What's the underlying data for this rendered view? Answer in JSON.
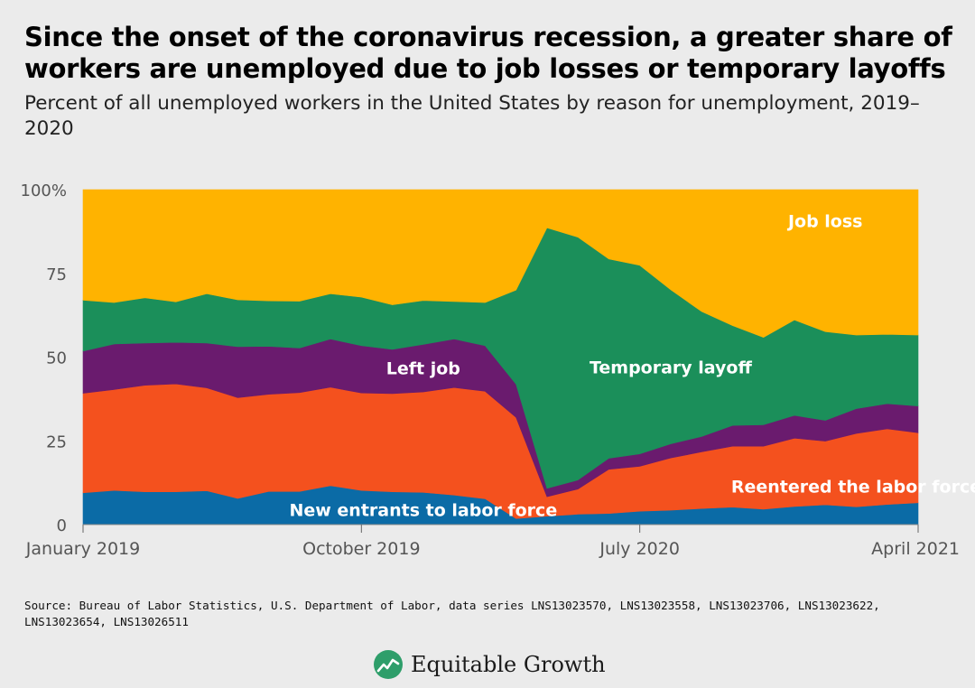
{
  "title": "Since the onset of the coronavirus recession, a greater share of workers are unemployed due to job losses or temporary layoffs",
  "subtitle": "Percent of all unemployed workers in the United States by reason for unemployment, 2019–2020",
  "source": "Source: Bureau of Labor Statistics, U.S. Department of Labor, data series LNS13023570, LNS13023558, LNS13023706, LNS13023622, LNS13023654, LNS13026511",
  "logo": {
    "text": "Equitable Growth",
    "icon": "equitable-growth-logo-icon"
  },
  "chart_data": {
    "type": "area",
    "stacked": true,
    "x": [
      "2019-01",
      "2019-02",
      "2019-03",
      "2019-04",
      "2019-05",
      "2019-06",
      "2019-07",
      "2019-08",
      "2019-09",
      "2019-10",
      "2019-11",
      "2019-12",
      "2020-01",
      "2020-02",
      "2020-03",
      "2020-04",
      "2020-05",
      "2020-06",
      "2020-07",
      "2020-08",
      "2020-09",
      "2020-10",
      "2020-11",
      "2020-12",
      "2021-01",
      "2021-02",
      "2021-03",
      "2021-04"
    ],
    "x_ticks": [
      {
        "x": "2019-01",
        "label": "January 2019"
      },
      {
        "x": "2019-10",
        "label": "October 2019"
      },
      {
        "x": "2020-07",
        "label": "July 2020"
      },
      {
        "x": "2021-04",
        "label": "April 2021"
      }
    ],
    "y_ticks": [
      {
        "value": 0,
        "label": "0"
      },
      {
        "value": 25,
        "label": "25"
      },
      {
        "value": 50,
        "label": "50"
      },
      {
        "value": 75,
        "label": "75"
      },
      {
        "value": 100,
        "label": "100%"
      }
    ],
    "ylim": [
      0,
      100
    ],
    "grid": false,
    "series": [
      {
        "name": "New entrants to labor force",
        "color": "#0b6ba6",
        "values": [
          9.5,
          10.2,
          9.8,
          9.8,
          10.1,
          7.8,
          9.9,
          9.9,
          11.6,
          10.2,
          9.8,
          9.6,
          8.8,
          7.7,
          1.8,
          2.5,
          3.1,
          3.3,
          4.0,
          4.3,
          4.8,
          5.2,
          4.6,
          5.4,
          5.9,
          5.3,
          6.0,
          6.5
        ]
      },
      {
        "name": "Reentered the labor force",
        "color": "#f4511e",
        "values": [
          29.7,
          30.1,
          31.8,
          32.2,
          30.7,
          30.1,
          29.0,
          29.5,
          29.4,
          29.1,
          29.3,
          30.0,
          32.1,
          32.1,
          30.2,
          5.8,
          7.5,
          13.2,
          13.4,
          15.6,
          16.9,
          18.2,
          18.8,
          20.4,
          19.0,
          21.9,
          22.6,
          20.9
        ]
      },
      {
        "name": "Left job",
        "color": "#6a1b6e",
        "values": [
          12.6,
          13.6,
          12.6,
          12.4,
          13.4,
          15.2,
          14.3,
          13.3,
          14.4,
          14.1,
          13.2,
          14.2,
          14.5,
          13.6,
          9.9,
          2.5,
          2.7,
          3.3,
          3.7,
          4.2,
          4.6,
          6.2,
          6.4,
          6.8,
          6.2,
          7.4,
          7.5,
          8.0
        ]
      },
      {
        "name": "Temporary layoff",
        "color": "#1b8f5a",
        "values": [
          15.2,
          12.4,
          13.5,
          12.1,
          14.7,
          14.0,
          13.6,
          14.0,
          13.5,
          14.5,
          13.3,
          13.1,
          11.2,
          12.9,
          28.1,
          77.8,
          72.5,
          59.5,
          56.3,
          46.0,
          37.3,
          29.8,
          26.1,
          28.5,
          26.5,
          22.0,
          20.7,
          21.2
        ]
      },
      {
        "name": "Job loss",
        "color": "#ffb300",
        "values": [
          33.0,
          33.7,
          32.3,
          33.5,
          31.1,
          32.9,
          33.2,
          33.3,
          31.1,
          32.1,
          34.4,
          33.1,
          33.4,
          33.7,
          30.0,
          11.4,
          14.2,
          20.7,
          22.6,
          29.9,
          36.4,
          40.6,
          44.1,
          38.9,
          42.4,
          43.4,
          43.2,
          43.4
        ]
      }
    ],
    "area_labels": [
      {
        "series": "Job loss",
        "text": "Job loss",
        "color": "#ffffff"
      },
      {
        "series": "Temporary layoff",
        "text": "Temporary layoff",
        "color": "#ffffff"
      },
      {
        "series": "Left job",
        "text": "Left job",
        "color": "#ffffff"
      },
      {
        "series": "Reentered the labor force",
        "text": "Reentered the labor force",
        "color": "#ffffff"
      },
      {
        "series": "New entrants to labor force",
        "text": "New entrants to labor force",
        "color": "#ffffff"
      }
    ]
  }
}
